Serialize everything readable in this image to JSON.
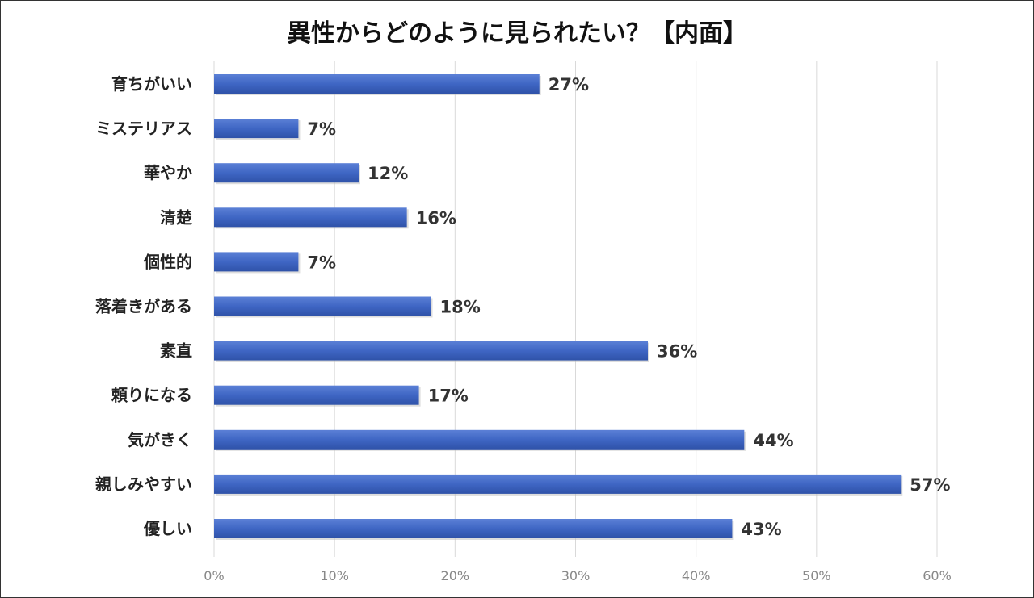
{
  "chart_data": {
    "type": "bar",
    "orientation": "horizontal",
    "title": "異性からどのように見られたい？【内面】",
    "categories": [
      "育ちがいい",
      "ミステリアス",
      "華やか",
      "清楚",
      "個性的",
      "落着きがある",
      "素直",
      "頼りになる",
      "気がきく",
      "親しみやすい",
      "優しい"
    ],
    "values": [
      27,
      7,
      12,
      16,
      7,
      18,
      36,
      17,
      44,
      57,
      43
    ],
    "value_labels": [
      "27%",
      "7%",
      "12%",
      "16%",
      "7%",
      "18%",
      "36%",
      "17%",
      "44%",
      "57%",
      "43%"
    ],
    "xlim": [
      0,
      60
    ],
    "xticks": [
      0,
      10,
      20,
      30,
      40,
      50,
      60
    ],
    "xtick_labels": [
      "0%",
      "10%",
      "20%",
      "30%",
      "40%",
      "50%",
      "60%"
    ],
    "grid": true,
    "bar_color": "#3F66C4"
  }
}
